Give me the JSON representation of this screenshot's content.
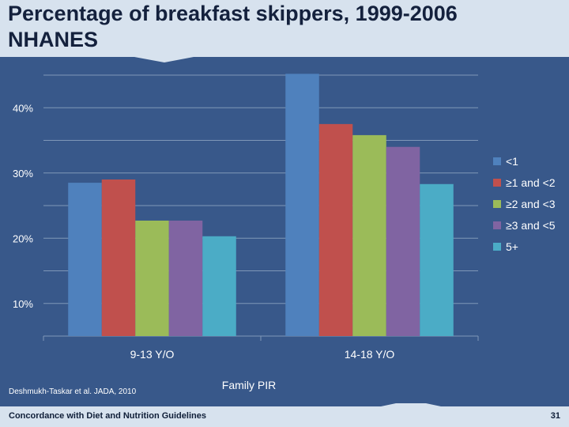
{
  "slide": {
    "title_line1": "Percentage of breakfast skippers, 1999-2006",
    "title_line2": "NHANES",
    "source": "Deshmukh-Taskar et al.  JADA, 2010",
    "footer_left": "Concordance with Diet and Nutrition Guidelines",
    "page_number": "31"
  },
  "colors": {
    "background": "#38588a",
    "banner": "#d7e2ee",
    "gridline": "#7f97b8",
    "text": "#ffffff"
  },
  "chart_data": {
    "type": "bar",
    "title": "",
    "xlabel": "Family PIR",
    "ylabel": "",
    "categories": [
      "9-13 Y/O",
      "14-18 Y/O"
    ],
    "series": [
      {
        "name": "<1",
        "color": "#4f81bd",
        "values": [
          28.5,
          45.2
        ]
      },
      {
        "name": "≥1 and <2",
        "color": "#c0504d",
        "values": [
          29.0,
          37.5
        ]
      },
      {
        "name": "≥2 and <3",
        "color": "#9bbb59",
        "values": [
          22.7,
          35.8
        ]
      },
      {
        "name": "≥3 and <5",
        "color": "#8064a2",
        "values": [
          22.7,
          34.0
        ]
      },
      {
        "name": "5+",
        "color": "#4bacc6",
        "values": [
          20.3,
          28.3
        ]
      }
    ],
    "ylim": [
      5,
      45
    ],
    "yticks": [
      10,
      20,
      30,
      40
    ],
    "ytick_labels": [
      "10%",
      "20%",
      "30%",
      "40%"
    ],
    "grid": true,
    "legend_position": "right"
  }
}
